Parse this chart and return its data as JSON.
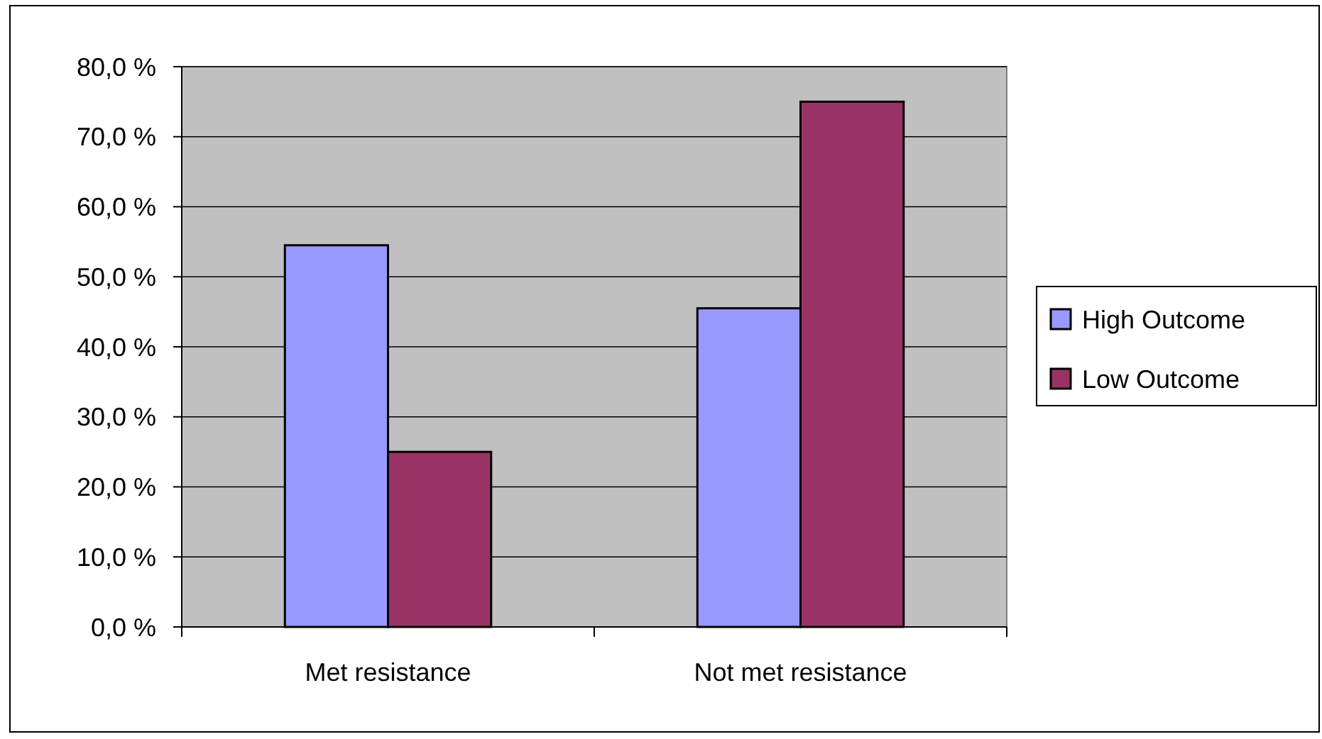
{
  "chart_data": {
    "type": "bar",
    "categories": [
      "Met resistance",
      "Not met resistance"
    ],
    "series": [
      {
        "name": "High Outcome",
        "color": "#9999ff",
        "values": [
          54.5,
          45.5
        ]
      },
      {
        "name": "Low Outcome",
        "color": "#993366",
        "values": [
          25,
          75
        ]
      }
    ],
    "ylim": [
      0,
      80
    ],
    "yticks": [
      {
        "value": 0,
        "label": "0,0 %"
      },
      {
        "value": 10,
        "label": "10,0 %"
      },
      {
        "value": 20,
        "label": "20,0 %"
      },
      {
        "value": 30,
        "label": "30,0 %"
      },
      {
        "value": 40,
        "label": "40,0 %"
      },
      {
        "value": 50,
        "label": "50,0 %"
      },
      {
        "value": 60,
        "label": "60,0 %"
      },
      {
        "value": 70,
        "label": "70,0 %"
      },
      {
        "value": 80,
        "label": "80,0 %"
      }
    ],
    "grid": "y",
    "legend": "right"
  }
}
